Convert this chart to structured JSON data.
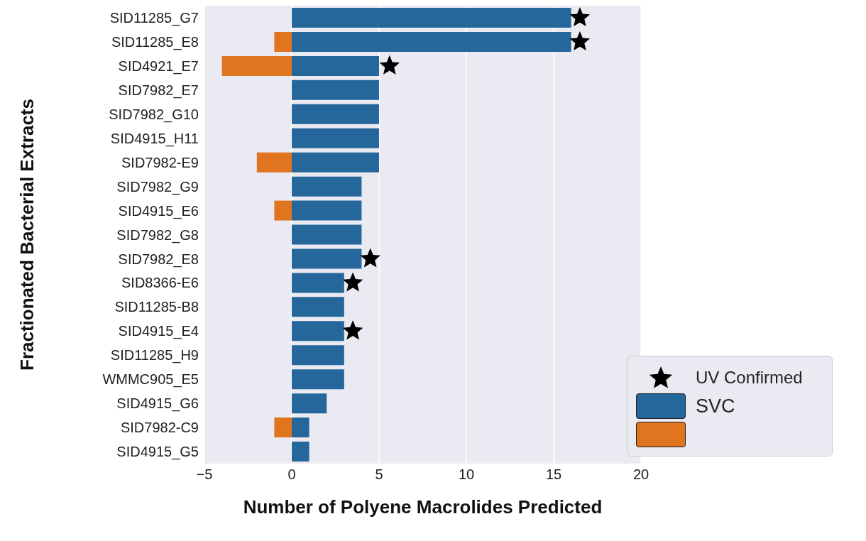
{
  "chart_data": {
    "type": "bar",
    "orientation": "horizontal",
    "xlabel": "Number of Polyene Macrolides Predicted",
    "ylabel": "Fractionated Bacterial Extracts",
    "categories": [
      "SID11285_G7",
      "SID11285_E8",
      "SID4921_E7",
      "SID7982_E7",
      "SID7982_G10",
      "SID4915_H11",
      "SID7982-E9",
      "SID7982_G9",
      "SID4915_E6",
      "SID7982_G8",
      "SID7982_E8",
      "SID8366-E6",
      "SID11285-B8",
      "SID4915_E4",
      "SID11285_H9",
      "WMMC905_E5",
      "SID4915_G6",
      "SID7982-C9",
      "SID4915_G5"
    ],
    "series": [
      {
        "name": "UV Confirmed",
        "type": "scatter",
        "marker": "star",
        "color": "#000000",
        "values": [
          16.5,
          16.5,
          5.6,
          null,
          null,
          null,
          null,
          null,
          null,
          null,
          4.5,
          3.5,
          null,
          3.5,
          null,
          null,
          null,
          null,
          null
        ]
      },
      {
        "name": "SVC",
        "color": "#25669b",
        "values": [
          16,
          16,
          5,
          5,
          5,
          5,
          5,
          4,
          4,
          4,
          4,
          3,
          3,
          3,
          3,
          3,
          2,
          1,
          1
        ]
      },
      {
        "color": "#e1741f",
        "values": [
          null,
          -1,
          -4,
          null,
          null,
          null,
          -2,
          null,
          -1,
          null,
          null,
          null,
          null,
          null,
          null,
          null,
          null,
          -1,
          null
        ]
      }
    ],
    "xlim": [
      -5,
      20
    ],
    "xticks": [
      -5,
      0,
      5,
      10,
      15,
      20
    ],
    "grid": "x",
    "legend": "bottom right"
  }
}
